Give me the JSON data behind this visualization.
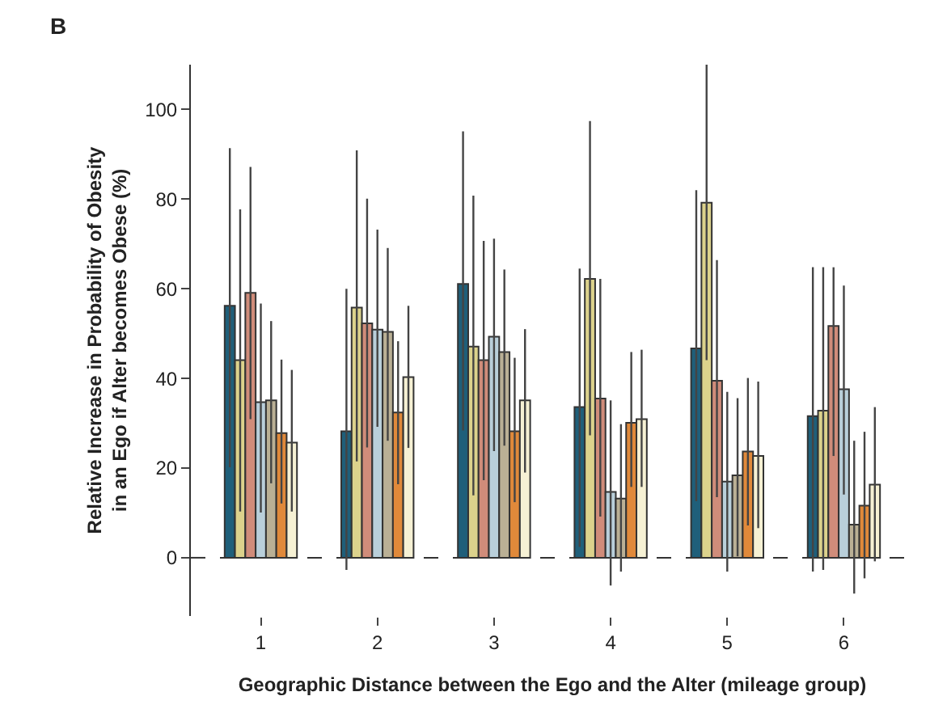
{
  "chart_data": {
    "type": "bar",
    "annotations": [
      "B"
    ],
    "xlabel": "Geographic Distance between the Ego and the Alter (mileage group)",
    "ylabel": "Relative Increase in Probability of Obesity\nin an Ego if Alter becomes Obese (%)",
    "categories": [
      "1",
      "2",
      "3",
      "4",
      "5",
      "6"
    ],
    "ylim": [
      -13,
      110
    ],
    "yticks": [
      0,
      20,
      40,
      60,
      80,
      100
    ],
    "grid": false,
    "ref_lines": [
      {
        "axis": "y",
        "value": 0,
        "color": "#333333",
        "line_style": "dashed"
      }
    ],
    "series": [
      {
        "color": "#1f5f7a",
        "values": [
          56.2,
          28.2,
          61.1,
          33.6,
          46.7,
          31.6
        ],
        "errors": [
          [
            20.2,
            91.4
          ],
          [
            -2.7,
            60.0
          ],
          [
            28.4,
            95.1
          ],
          [
            2.4,
            64.5
          ],
          [
            12.6,
            82.0
          ],
          [
            -3.1,
            64.8
          ]
        ]
      },
      {
        "color": "#dcd28c",
        "values": [
          44.1,
          55.8,
          47.1,
          62.2,
          79.2,
          32.8
        ],
        "errors": [
          [
            10.3,
            77.7
          ],
          [
            21.5,
            90.9
          ],
          [
            13.9,
            80.8
          ],
          [
            27.3,
            97.4
          ],
          [
            44.1,
            110
          ],
          [
            -2.7,
            64.8
          ]
        ]
      },
      {
        "color": "#d08c7a",
        "values": [
          59.1,
          52.3,
          44.1,
          35.5,
          39.5,
          51.7
        ],
        "errors": [
          [
            30.9,
            87.2
          ],
          [
            24.6,
            80.1
          ],
          [
            17.3,
            70.7
          ],
          [
            9.2,
            62.2
          ],
          [
            13.5,
            66.4
          ],
          [
            22.7,
            64.8
          ]
        ]
      },
      {
        "color": "#b9cfda",
        "values": [
          34.7,
          50.9,
          49.3,
          14.7,
          17.0,
          37.6
        ],
        "errors": [
          [
            10.1,
            56.7
          ],
          [
            29.2,
            73.2
          ],
          [
            23.8,
            71.2
          ],
          [
            -6.2,
            35.1
          ],
          [
            -3.1,
            37.0
          ],
          [
            14.1,
            60.7
          ]
        ]
      },
      {
        "color": "#bab095",
        "values": [
          35.1,
          50.4,
          45.9,
          13.2,
          18.4,
          7.4
        ],
        "errors": [
          [
            16.6,
            52.8
          ],
          [
            26.1,
            69.1
          ],
          [
            25.0,
            64.3
          ],
          [
            -3.1,
            29.8
          ],
          [
            0.3,
            35.6
          ],
          [
            -8.0,
            26.1
          ]
        ]
      },
      {
        "color": "#e0893a",
        "values": [
          27.8,
          32.4,
          28.2,
          30.1,
          23.7,
          11.6
        ],
        "errors": [
          [
            12.1,
            44.2
          ],
          [
            16.4,
            48.3
          ],
          [
            12.4,
            44.6
          ],
          [
            15.8,
            45.9
          ],
          [
            7.2,
            40.1
          ],
          [
            -4.6,
            28.1
          ]
        ]
      },
      {
        "color": "#f6f1d4",
        "values": [
          25.7,
          40.3,
          35.1,
          30.9,
          22.7,
          16.3
        ],
        "errors": [
          [
            10.3,
            41.9
          ],
          [
            24.5,
            56.2
          ],
          [
            19.0,
            51.0
          ],
          [
            15.8,
            46.4
          ],
          [
            6.6,
            39.3
          ],
          [
            -0.8,
            33.6
          ]
        ]
      }
    ]
  }
}
